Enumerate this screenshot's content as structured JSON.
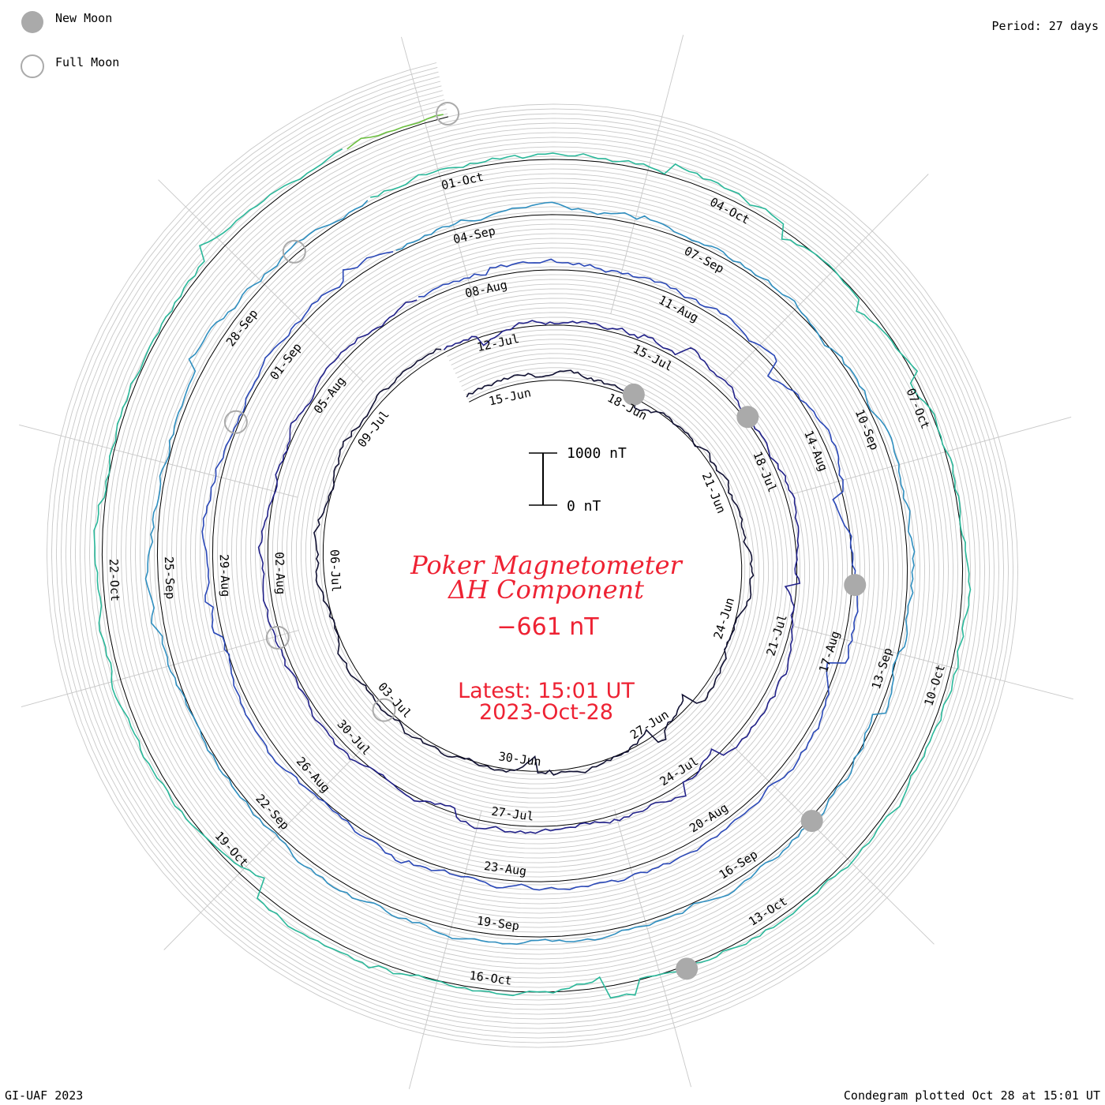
{
  "legend": {
    "new_moon_label": "New Moon",
    "full_moon_label": "Full Moon",
    "new_moon_color": "#aaaaaa",
    "full_moon_color": "#aaaaaa"
  },
  "header": {
    "period": "Period: 27 days"
  },
  "footer": {
    "left": "GI-UAF 2023",
    "right": "Condegram plotted Oct 28 at 15:01 UT"
  },
  "center": {
    "title1": "Poker Magnetometer",
    "title2": "ΔH Component",
    "value": "−661 nT",
    "latest": "Latest: 15:01 UT",
    "date": "2023-Oct-28",
    "title_color": "#ee2233"
  },
  "scale_bar": {
    "top_label": "1000 nT",
    "bottom_label": "0 nT"
  },
  "chart_data": {
    "type": "line",
    "subtype": "condegram-spiral",
    "title": "Poker Magnetometer ΔH Component",
    "period_days": 27,
    "start_date": "2023-06-14",
    "end_date": "2023-10-28",
    "latest_value_nT": -661,
    "units": "nT",
    "date_labels": [
      {
        "label": "15-Jun",
        "day": 1
      },
      {
        "label": "18-Jun",
        "day": 4
      },
      {
        "label": "21-Jun",
        "day": 7
      },
      {
        "label": "24-Jun",
        "day": 10
      },
      {
        "label": "27-Jun",
        "day": 13
      },
      {
        "label": "30-Jun",
        "day": 16
      },
      {
        "label": "03-Jul",
        "day": 19
      },
      {
        "label": "06-Jul",
        "day": 22
      },
      {
        "label": "09-Jul",
        "day": 25
      },
      {
        "label": "12-Jul",
        "day": 28
      },
      {
        "label": "15-Jul",
        "day": 31
      },
      {
        "label": "18-Jul",
        "day": 34
      },
      {
        "label": "21-Jul",
        "day": 37
      },
      {
        "label": "24-Jul",
        "day": 40
      },
      {
        "label": "27-Jul",
        "day": 43
      },
      {
        "label": "30-Jul",
        "day": 46
      },
      {
        "label": "02-Aug",
        "day": 49
      },
      {
        "label": "05-Aug",
        "day": 52
      },
      {
        "label": "08-Aug",
        "day": 55
      },
      {
        "label": "11-Aug",
        "day": 58
      },
      {
        "label": "14-Aug",
        "day": 61
      },
      {
        "label": "17-Aug",
        "day": 64
      },
      {
        "label": "20-Aug",
        "day": 67
      },
      {
        "label": "23-Aug",
        "day": 70
      },
      {
        "label": "26-Aug",
        "day": 73
      },
      {
        "label": "29-Aug",
        "day": 76
      },
      {
        "label": "01-Sep",
        "day": 79
      },
      {
        "label": "04-Sep",
        "day": 82
      },
      {
        "label": "07-Sep",
        "day": 85
      },
      {
        "label": "10-Sep",
        "day": 88
      },
      {
        "label": "13-Sep",
        "day": 91
      },
      {
        "label": "16-Sep",
        "day": 94
      },
      {
        "label": "19-Sep",
        "day": 97
      },
      {
        "label": "22-Sep",
        "day": 100
      },
      {
        "label": "25-Sep",
        "day": 103
      },
      {
        "label": "28-Sep",
        "day": 106
      },
      {
        "label": "01-Oct",
        "day": 109
      },
      {
        "label": "04-Oct",
        "day": 112
      },
      {
        "label": "07-Oct",
        "day": 115
      },
      {
        "label": "10-Oct",
        "day": 118
      },
      {
        "label": "13-Oct",
        "day": 121
      },
      {
        "label": "16-Oct",
        "day": 124
      },
      {
        "label": "19-Oct",
        "day": 127
      },
      {
        "label": "22-Oct",
        "day": 130
      }
    ],
    "new_moons": [
      "2023-06-18",
      "2023-07-17",
      "2023-08-16",
      "2023-09-15",
      "2023-10-14"
    ],
    "full_moons": [
      "2023-07-03",
      "2023-08-01",
      "2023-08-31",
      "2023-09-29",
      "2023-10-28"
    ],
    "series_colors": [
      "#111133",
      "#22228a",
      "#2a48b8",
      "#2f8fc0",
      "#2ab89a",
      "#6cc040",
      "#b0b820",
      "#c89020",
      "#c85018",
      "#b01010"
    ]
  }
}
